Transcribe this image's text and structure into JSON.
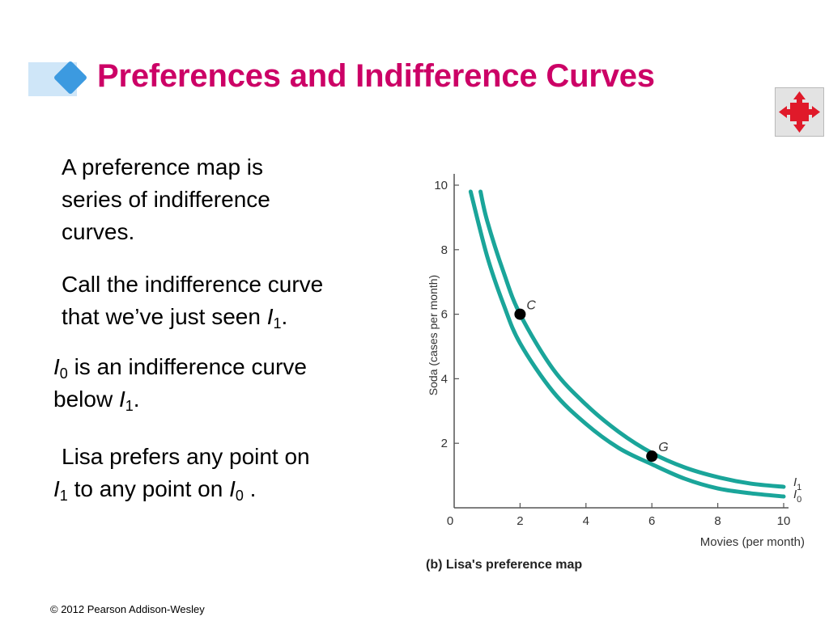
{
  "slide": {
    "title": "Preferences and Indifference Curves",
    "footer": "© 2012 Pearson Addison-Wesley",
    "nav_icon": "four-way-arrows-icon",
    "colors": {
      "title": "#cc0066",
      "curve": "#1aa59a",
      "accent_diamond": "#3c9ae0"
    }
  },
  "text": {
    "p1": [
      "A preference map is",
      "series of indifference",
      "curves."
    ],
    "p2": {
      "line1": "Call the indifference curve",
      "line2_text": "that we’ve just seen ",
      "line2_var": "I",
      "line2_sub": "1",
      "line2_end": "."
    },
    "p3": {
      "line1_var": "I",
      "line1_sub": "0",
      "line1_text": " is an indifference curve",
      "line2_text": "below ",
      "line2_var": "I",
      "line2_sub": "1",
      "line2_end": "."
    },
    "p4": {
      "line1": "Lisa prefers any point on",
      "line2_var1": "I",
      "line2_sub1": "1",
      "line2_text": " to any point on ",
      "line2_var2": "I",
      "line2_sub2": "0",
      "line2_end": " ."
    }
  },
  "chart_data": {
    "type": "line",
    "caption": "(b) Lisa's preference map",
    "xlabel": "Movies (per month)",
    "ylabel": "Soda (cases per month)",
    "xlim": [
      0,
      10
    ],
    "ylim": [
      0,
      10
    ],
    "x_ticks": [
      "0",
      "2",
      "4",
      "6",
      "8",
      "10"
    ],
    "y_ticks": [
      "2",
      "4",
      "6",
      "8",
      "10"
    ],
    "x_tick_values": [
      0,
      2,
      4,
      6,
      8,
      10
    ],
    "y_tick_values": [
      2,
      4,
      6,
      8,
      10
    ],
    "series": [
      {
        "name": "I1",
        "label_main": "I",
        "label_sub": "1",
        "x": [
          0.8,
          1.0,
          1.5,
          2.0,
          3.0,
          4.0,
          5.0,
          6.0,
          7.0,
          8.0,
          9.0,
          10.0
        ],
        "y": [
          9.8,
          8.9,
          7.3,
          6.0,
          4.3,
          3.2,
          2.35,
          1.7,
          1.25,
          0.95,
          0.75,
          0.65
        ]
      },
      {
        "name": "I0",
        "label_main": "I",
        "label_sub": "0",
        "x": [
          0.5,
          1.0,
          1.5,
          2.0,
          3.0,
          4.0,
          5.0,
          6.0,
          7.0,
          8.0,
          9.0,
          10.0
        ],
        "y": [
          9.8,
          7.8,
          6.3,
          5.1,
          3.6,
          2.6,
          1.85,
          1.35,
          0.9,
          0.6,
          0.45,
          0.35
        ]
      }
    ],
    "points": [
      {
        "label": "C",
        "x": 2,
        "y": 6
      },
      {
        "label": "G",
        "x": 6,
        "y": 1.6
      }
    ]
  }
}
